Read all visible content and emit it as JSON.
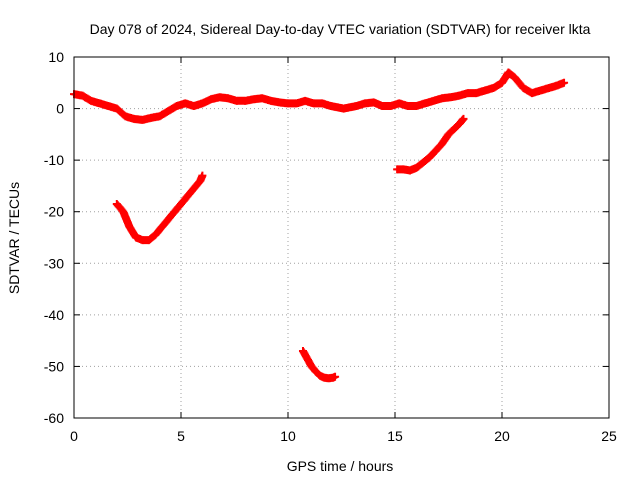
{
  "chart_data": {
    "type": "scatter",
    "title": "Day 078 of 2024, Sidereal Day-to-day VTEC variation (SDTVAR) for receiver lkta",
    "xlabel": "GPS time / hours",
    "ylabel": "SDTVAR / TECUs",
    "xlim": [
      0,
      25
    ],
    "ylim": [
      -60,
      10
    ],
    "xticks": [
      0,
      5,
      10,
      15,
      20,
      25
    ],
    "yticks": [
      10,
      0,
      -10,
      -20,
      -30,
      -40,
      -50,
      -60
    ],
    "xtick_labels": [
      "0",
      "5",
      "10",
      "15",
      "20",
      "25"
    ],
    "ytick_labels": [
      "10",
      "0",
      "-10",
      "-20",
      "-30",
      "-40",
      "-50",
      "-60"
    ],
    "grid": true,
    "marker": "plus",
    "color": "#ff0000",
    "series": [
      {
        "name": "near-zero track",
        "x": [
          0.0,
          0.4,
          0.8,
          1.2,
          1.6,
          2.0,
          2.4,
          2.8,
          3.2,
          3.6,
          4.0,
          4.4,
          4.8,
          5.2,
          5.6,
          6.0,
          6.4,
          6.8,
          7.2,
          7.6,
          8.0,
          8.4,
          8.8,
          9.2,
          9.6,
          10.0,
          10.4,
          10.8,
          11.2,
          11.6,
          12.0,
          12.6,
          13.2,
          13.6,
          14.0,
          14.4,
          14.8,
          15.2,
          15.6,
          16.0,
          16.4,
          16.8,
          17.2,
          17.6,
          18.0,
          18.4,
          18.8,
          19.2,
          19.6,
          20.0,
          20.3,
          20.6,
          21.0,
          21.4,
          21.8,
          22.2,
          22.6,
          22.9
        ],
        "y": [
          2.8,
          2.5,
          1.5,
          1.0,
          0.5,
          0.0,
          -1.5,
          -2.0,
          -2.2,
          -1.8,
          -1.5,
          -0.5,
          0.5,
          1.0,
          0.5,
          1.0,
          1.8,
          2.2,
          2.0,
          1.5,
          1.5,
          1.8,
          2.0,
          1.5,
          1.2,
          1.0,
          1.0,
          1.5,
          1.0,
          1.0,
          0.5,
          0.0,
          0.5,
          1.0,
          1.2,
          0.5,
          0.5,
          1.0,
          0.5,
          0.5,
          1.0,
          1.5,
          2.0,
          2.2,
          2.5,
          3.0,
          3.0,
          3.5,
          4.0,
          5.0,
          7.0,
          6.0,
          4.0,
          3.0,
          3.5,
          4.0,
          4.5,
          5.0
        ]
      },
      {
        "name": "arc 2-6 h",
        "x": [
          2.0,
          2.3,
          2.6,
          2.9,
          3.2,
          3.5,
          3.8,
          4.1,
          4.4,
          4.7,
          5.0,
          5.3,
          5.6,
          5.9,
          6.0
        ],
        "y": [
          -18.5,
          -20.0,
          -23.0,
          -25.0,
          -25.5,
          -25.5,
          -24.5,
          -23.0,
          -21.5,
          -20.0,
          -18.5,
          -17.0,
          -15.5,
          -14.0,
          -13.0
        ]
      },
      {
        "name": "arc 10.7-12.2 h",
        "x": [
          10.7,
          10.9,
          11.1,
          11.3,
          11.5,
          11.7,
          11.9,
          12.1,
          12.2
        ],
        "y": [
          -47.0,
          -48.5,
          -50.0,
          -51.0,
          -51.8,
          -52.2,
          -52.3,
          -52.2,
          -52.0
        ]
      },
      {
        "name": "arc 15.1-18.2 h",
        "x": [
          15.1,
          15.4,
          15.7,
          16.0,
          16.3,
          16.6,
          16.9,
          17.2,
          17.5,
          17.8,
          18.0,
          18.2
        ],
        "y": [
          -11.8,
          -11.8,
          -12.0,
          -11.5,
          -10.5,
          -9.5,
          -8.2,
          -6.8,
          -5.0,
          -3.8,
          -3.0,
          -2.0
        ]
      }
    ]
  }
}
